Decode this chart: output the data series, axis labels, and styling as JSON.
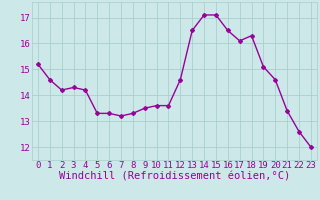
{
  "hours": [
    0,
    1,
    2,
    3,
    4,
    5,
    6,
    7,
    8,
    9,
    10,
    11,
    12,
    13,
    14,
    15,
    16,
    17,
    18,
    19,
    20,
    21,
    22,
    23
  ],
  "values": [
    15.2,
    14.6,
    14.2,
    14.3,
    14.2,
    13.3,
    13.3,
    13.2,
    13.3,
    13.5,
    13.6,
    13.6,
    14.6,
    16.5,
    17.1,
    17.1,
    16.5,
    16.1,
    16.3,
    15.1,
    14.6,
    13.4,
    12.6,
    12.0
  ],
  "line_color": "#990099",
  "marker": "D",
  "marker_size": 2,
  "bg_color": "#cce8e8",
  "grid_color": "#aacece",
  "xlabel": "Windchill (Refroidissement éolien,°C)",
  "xlabel_color": "#990099",
  "ylim": [
    11.5,
    17.6
  ],
  "yticks": [
    12,
    13,
    14,
    15,
    16,
    17
  ],
  "xticks": [
    0,
    1,
    2,
    3,
    4,
    5,
    6,
    7,
    8,
    9,
    10,
    11,
    12,
    13,
    14,
    15,
    16,
    17,
    18,
    19,
    20,
    21,
    22,
    23
  ],
  "tick_color": "#990099",
  "tick_labelsize": 6.5,
  "xlabel_fontsize": 7.5,
  "line_width": 1.0
}
